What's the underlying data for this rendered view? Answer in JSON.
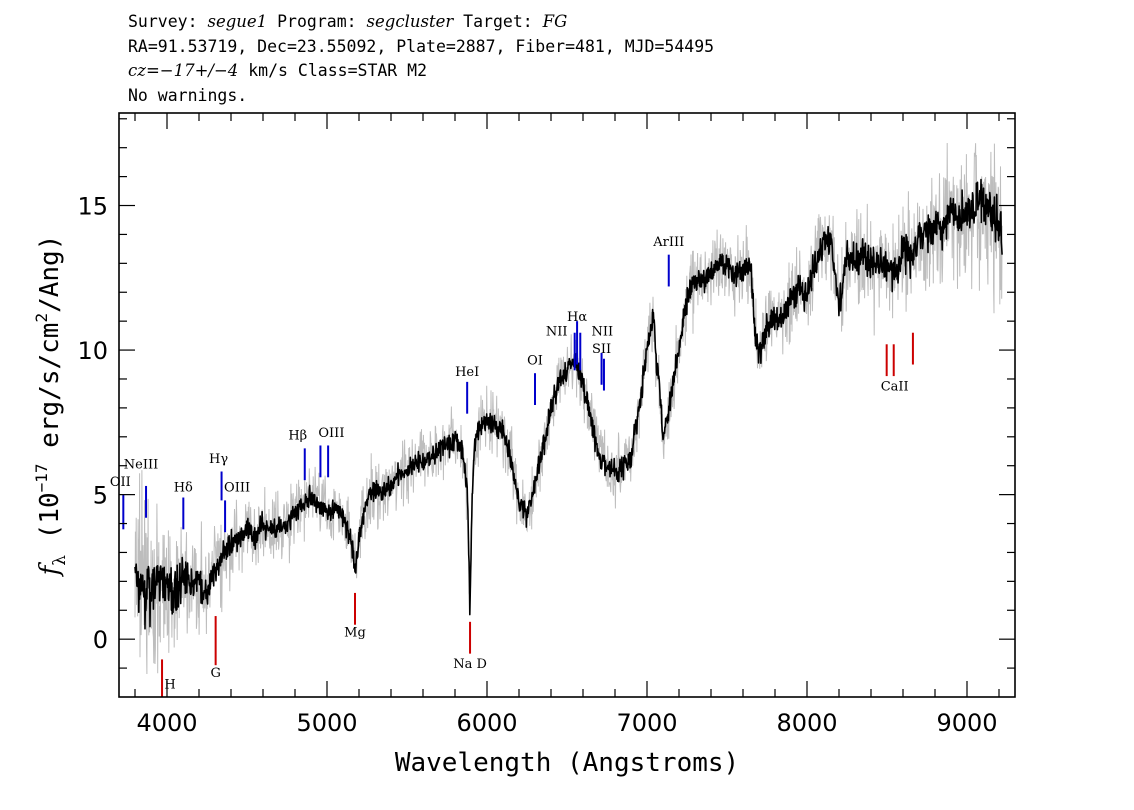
{
  "header": {
    "survey_label": "Survey:",
    "survey": "segue1",
    "program_label": "Program:",
    "program": "segcluster",
    "target_label": "Target:",
    "target": "FG",
    "line2": "RA=91.53719, Dec=23.55092, Plate=2887, Fiber=481, MJD=54495",
    "cz_label": "cz",
    "cz_value": "=−17+/−4",
    "cz_units": "km/s Class=STAR M2",
    "line4": "No warnings."
  },
  "chart_data": {
    "type": "line",
    "xlabel": "Wavelength (Angstroms)",
    "ylabel": "f_λ (10^-17 erg/s/cm^2/Ang)",
    "ylabel_parts": {
      "f": "f",
      "sub": "λ",
      "a": " (10",
      "sup1": "−17",
      "b": " erg/s/cm",
      "sup2": "2",
      "c": "/Ang)"
    },
    "xlim": [
      3700,
      9300
    ],
    "ylim": [
      -2,
      18.2
    ],
    "xticks": [
      4000,
      5000,
      6000,
      7000,
      8000,
      9000
    ],
    "yticks": [
      0,
      5,
      10,
      15
    ],
    "grid": false,
    "series": [
      {
        "role": "flux",
        "color": "#000000",
        "x": [
          3800,
          3850,
          3900,
          3950,
          4000,
          4050,
          4100,
          4150,
          4200,
          4250,
          4300,
          4350,
          4400,
          4450,
          4500,
          4550,
          4600,
          4650,
          4700,
          4750,
          4800,
          4850,
          4900,
          4950,
          5000,
          5050,
          5100,
          5150,
          5180,
          5200,
          5250,
          5300,
          5350,
          5400,
          5450,
          5500,
          5550,
          5600,
          5650,
          5700,
          5750,
          5800,
          5850,
          5880,
          5893,
          5905,
          5920,
          5950,
          6000,
          6050,
          6100,
          6150,
          6200,
          6250,
          6300,
          6350,
          6400,
          6450,
          6500,
          6550,
          6563,
          6600,
          6650,
          6700,
          6750,
          6800,
          6850,
          6900,
          6950,
          7000,
          7040,
          7060,
          7080,
          7100,
          7150,
          7200,
          7250,
          7300,
          7350,
          7400,
          7450,
          7500,
          7550,
          7600,
          7650,
          7680,
          7700,
          7750,
          7800,
          7850,
          7900,
          7950,
          8000,
          8050,
          8100,
          8150,
          8200,
          8250,
          8300,
          8350,
          8400,
          8450,
          8500,
          8550,
          8600,
          8650,
          8700,
          8750,
          8800,
          8850,
          8900,
          8950,
          9000,
          9050,
          9100,
          9150,
          9200,
          9220
        ],
        "y": [
          2.2,
          1.8,
          1.5,
          2.0,
          1.8,
          1.6,
          2.2,
          1.8,
          2.0,
          1.6,
          2.4,
          2.8,
          3.3,
          3.6,
          3.7,
          3.6,
          3.9,
          3.8,
          3.9,
          4.0,
          4.4,
          4.6,
          5.0,
          4.7,
          4.4,
          4.5,
          4.2,
          3.4,
          2.4,
          3.6,
          4.8,
          5.2,
          5.0,
          5.2,
          5.8,
          5.8,
          6.1,
          6.2,
          6.3,
          6.6,
          6.7,
          7.0,
          6.5,
          4.8,
          0.9,
          4.5,
          6.6,
          7.3,
          7.6,
          7.3,
          7.2,
          6.2,
          4.8,
          4.3,
          5.4,
          6.6,
          7.9,
          8.9,
          9.3,
          9.7,
          9.5,
          8.8,
          7.6,
          6.4,
          5.9,
          5.8,
          6.0,
          6.3,
          8.0,
          10.0,
          11.3,
          9.5,
          8.8,
          6.9,
          8.4,
          10.2,
          11.7,
          12.4,
          12.4,
          12.6,
          13.1,
          13.0,
          12.6,
          12.8,
          12.8,
          10.2,
          9.9,
          10.8,
          11.2,
          11.0,
          11.9,
          12.2,
          11.8,
          13.0,
          13.7,
          13.8,
          11.4,
          13.3,
          13.0,
          13.3,
          12.9,
          12.9,
          13.0,
          12.5,
          13.5,
          13.3,
          13.7,
          14.1,
          14.5,
          14.2,
          14.9,
          14.3,
          14.8,
          15.2,
          15.1,
          14.7,
          14.4,
          13.4
        ]
      },
      {
        "role": "error",
        "color": "#bdbdbd",
        "x": [
          3800,
          3850,
          3900,
          3950,
          4000,
          4050,
          4100,
          4150,
          4200,
          4250,
          4300,
          4350,
          4400,
          4450,
          4500,
          4550,
          4600,
          4650,
          4700,
          4750,
          4800,
          4850,
          4900,
          4950,
          5000,
          5050,
          5100,
          5150,
          5180,
          5200,
          5250,
          5300,
          5350,
          5400,
          5450,
          5500,
          5550,
          5600,
          5650,
          5700,
          5750,
          5800,
          5850,
          5880,
          5893,
          5905,
          5920,
          5950,
          6000,
          6050,
          6100,
          6150,
          6200,
          6250,
          6300,
          6350,
          6400,
          6450,
          6500,
          6550,
          6563,
          6600,
          6650,
          6700,
          6750,
          6800,
          6850,
          6900,
          6950,
          7000,
          7040,
          7060,
          7080,
          7100,
          7150,
          7200,
          7250,
          7300,
          7350,
          7400,
          7450,
          7500,
          7550,
          7600,
          7650,
          7680,
          7700,
          7750,
          7800,
          7850,
          7900,
          7950,
          8000,
          8050,
          8100,
          8150,
          8200,
          8250,
          8300,
          8350,
          8400,
          8450,
          8500,
          8550,
          8600,
          8650,
          8700,
          8750,
          8800,
          8850,
          8900,
          8950,
          9000,
          9050,
          9100,
          9150,
          9200,
          9220
        ],
        "y": [
          1.6,
          1.5,
          1.4,
          1.3,
          1.2,
          1.1,
          1.0,
          0.9,
          0.9,
          0.8,
          0.8,
          0.8,
          0.7,
          0.7,
          0.7,
          0.7,
          0.6,
          0.6,
          0.6,
          0.6,
          0.6,
          0.6,
          0.6,
          0.6,
          0.6,
          0.6,
          0.6,
          0.6,
          0.6,
          0.6,
          0.6,
          0.6,
          0.6,
          0.6,
          0.6,
          0.6,
          0.6,
          0.6,
          0.6,
          0.6,
          0.6,
          0.6,
          0.6,
          0.6,
          0.6,
          0.6,
          0.6,
          0.6,
          0.6,
          0.6,
          0.6,
          0.6,
          0.6,
          0.6,
          0.6,
          0.6,
          0.6,
          0.6,
          0.6,
          0.6,
          0.6,
          0.6,
          0.6,
          0.6,
          0.6,
          0.6,
          0.6,
          0.6,
          0.6,
          0.6,
          0.6,
          0.6,
          0.6,
          0.6,
          0.6,
          0.6,
          0.7,
          0.7,
          0.7,
          0.7,
          0.7,
          0.7,
          0.7,
          0.7,
          0.7,
          0.7,
          0.7,
          0.7,
          0.7,
          0.7,
          0.8,
          0.8,
          0.8,
          0.8,
          0.8,
          0.8,
          0.8,
          0.8,
          0.8,
          0.9,
          0.9,
          0.9,
          0.9,
          0.9,
          1.0,
          1.0,
          1.0,
          1.0,
          1.1,
          1.1,
          1.2,
          1.2,
          1.3,
          1.3,
          1.4,
          1.4,
          1.5,
          1.5
        ]
      }
    ],
    "emission_lines": [
      {
        "label": "OII",
        "wave": 3727,
        "y1": 3.8,
        "y2": 5.0,
        "color": "#0000cc",
        "text_y": 5.3,
        "text_dx": -3
      },
      {
        "label": "NeIII",
        "wave": 3869,
        "y1": 4.2,
        "y2": 5.3,
        "color": "#0000cc",
        "text_y": 5.9,
        "text_dx": -5
      },
      {
        "label": "Hδ",
        "wave": 4102,
        "y1": 3.8,
        "y2": 4.9,
        "color": "#0000cc",
        "text_y": 5.1,
        "text_dx": 0
      },
      {
        "label": "Hγ",
        "wave": 4341,
        "y1": 4.8,
        "y2": 5.8,
        "color": "#0000cc",
        "text_y": 6.1,
        "text_dx": -3
      },
      {
        "label": "OIII",
        "wave": 4363,
        "y1": 3.7,
        "y2": 4.8,
        "color": "#0000cc",
        "text_y": 5.1,
        "text_dx": 12
      },
      {
        "label": "Hβ",
        "wave": 4861,
        "y1": 5.5,
        "y2": 6.6,
        "color": "#0000cc",
        "text_y": 6.9,
        "text_dx": -7
      },
      {
        "label": "OIII",
        "wave": 4959,
        "y1": 5.6,
        "y2": 6.7,
        "color": "#0000cc",
        "text_y": 7.0,
        "text_dx": 11
      },
      {
        "label": "",
        "wave": 5007,
        "y1": 5.6,
        "y2": 6.7,
        "color": "#0000cc",
        "text_y": 7.0,
        "text_dx": 0
      },
      {
        "label": "HeI",
        "wave": 5876,
        "y1": 7.8,
        "y2": 8.9,
        "color": "#0000cc",
        "text_y": 9.1,
        "text_dx": 0
      },
      {
        "label": "OI",
        "wave": 6300,
        "y1": 8.1,
        "y2": 9.2,
        "color": "#0000cc",
        "text_y": 9.5,
        "text_dx": 0
      },
      {
        "label": "NII",
        "wave": 6548,
        "y1": 9.3,
        "y2": 10.6,
        "color": "#0000cc",
        "text_y": 10.5,
        "text_dx": -18
      },
      {
        "label": "Hα",
        "wave": 6563,
        "y1": 9.5,
        "y2": 11.0,
        "color": "#0000cc",
        "text_y": 11.0,
        "text_dx": 0
      },
      {
        "label": "NII",
        "wave": 6583,
        "y1": 9.3,
        "y2": 10.6,
        "color": "#0000cc",
        "text_y": 10.5,
        "text_dx": 22
      },
      {
        "label": "SII",
        "wave": 6716,
        "y1": 8.8,
        "y2": 9.9,
        "color": "#0000cc",
        "text_y": 9.9,
        "text_dx": 0
      },
      {
        "label": "",
        "wave": 6731,
        "y1": 8.6,
        "y2": 9.7,
        "color": "#0000cc",
        "text_y": 9.9,
        "text_dx": 0
      },
      {
        "label": "ArIII",
        "wave": 7136,
        "y1": 12.2,
        "y2": 13.3,
        "color": "#0000cc",
        "text_y": 13.6,
        "text_dx": 0
      }
    ],
    "absorption_lines": [
      {
        "label": "H",
        "wave": 3969,
        "y1": -2.0,
        "y2": -0.7,
        "color": "#cc0000",
        "text_y": -1.7,
        "text_dx": 8
      },
      {
        "label": "G",
        "wave": 4304,
        "y1": 0.8,
        "y2": -0.9,
        "color": "#cc0000",
        "text_y": -1.3,
        "text_dx": 0
      },
      {
        "label": "Mg",
        "wave": 5175,
        "y1": 1.6,
        "y2": 0.5,
        "color": "#cc0000",
        "text_y": 0.1,
        "text_dx": 0
      },
      {
        "label": "Na D",
        "wave": 5894,
        "y1": 0.6,
        "y2": -0.5,
        "color": "#cc0000",
        "text_y": -1.0,
        "text_dx": 0
      },
      {
        "label": "CaII",
        "wave": 8498,
        "y1": 10.2,
        "y2": 9.1,
        "color": "#cc0000",
        "text_y": 8.6,
        "text_dx": 8
      },
      {
        "label": "",
        "wave": 8542,
        "y1": 10.2,
        "y2": 9.1,
        "color": "#cc0000",
        "text_y": 8.6,
        "text_dx": 0
      },
      {
        "label": "",
        "wave": 8662,
        "y1": 10.6,
        "y2": 9.5,
        "color": "#cc0000",
        "text_y": 9.0,
        "text_dx": 0
      }
    ]
  }
}
